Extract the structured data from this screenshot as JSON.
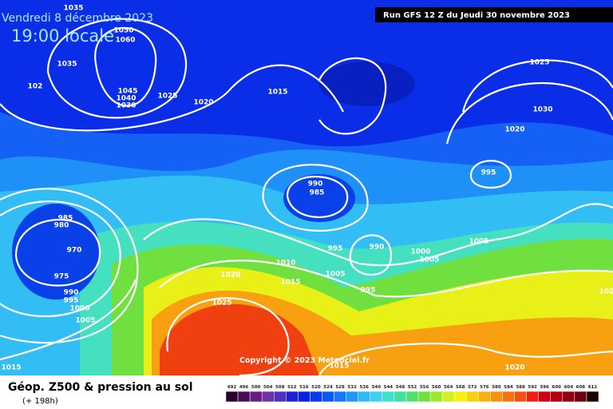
{
  "header": {
    "date": "Vendredi 8 décembre 2023",
    "time": "19:00 locale",
    "run": "Run GFS 12 Z du Jeudi 30 novembre 2023"
  },
  "copyright": "Copyright © 2023 Meteociel.fr",
  "footer": {
    "title": "Géop. Z500 & pression au sol",
    "lead": "(+ 198h)"
  },
  "pressure_labels": [
    "1035",
    "1050",
    "1060",
    "1035",
    "102",
    "1045",
    "1040",
    "1030",
    "1025",
    "1020",
    "1015",
    "1025",
    "1030",
    "1020",
    "995",
    "990",
    "985",
    "985",
    "980",
    "970",
    "975",
    "990",
    "995",
    "1000",
    "1005",
    "1025",
    "1020",
    "1010",
    "1015",
    "1005",
    "995",
    "990",
    "995",
    "1000",
    "1005",
    "1005",
    "1015",
    "1015",
    "1020",
    "102"
  ],
  "legend": {
    "levels": [
      "492",
      "496",
      "500",
      "504",
      "508",
      "512",
      "516",
      "520",
      "524",
      "528",
      "532",
      "536",
      "540",
      "544",
      "548",
      "552",
      "556",
      "560",
      "564",
      "568",
      "572",
      "576",
      "580",
      "584",
      "588",
      "592",
      "596",
      "600",
      "604",
      "608",
      "612"
    ],
    "colors": [
      "#2a0030",
      "#4a0a5a",
      "#6a1a80",
      "#7030a8",
      "#5030c0",
      "#2020d0",
      "#0820e0",
      "#0838f0",
      "#0a58f8",
      "#1478f8",
      "#2098f8",
      "#30b8f8",
      "#40d0f0",
      "#40e0d0",
      "#40e0a0",
      "#50e070",
      "#70e040",
      "#a0e830",
      "#d0f020",
      "#f8f010",
      "#f8d010",
      "#f8b010",
      "#f89010",
      "#f87010",
      "#f85010",
      "#f02010",
      "#d00010",
      "#b00010",
      "#900010",
      "#700010",
      "#200000"
    ]
  }
}
